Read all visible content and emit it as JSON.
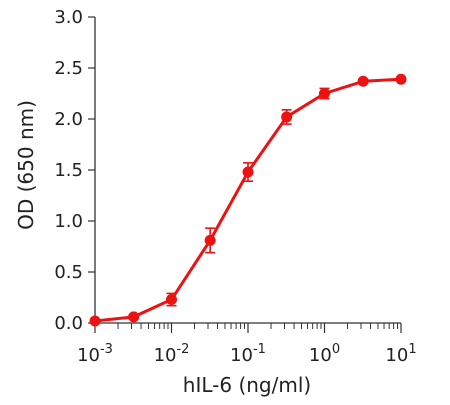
{
  "chart_data": {
    "type": "line",
    "xscale": "log",
    "xlabel": "hIL-6 (ng/ml)",
    "ylabel": "OD (650 nm)",
    "xlim": [
      0.001,
      10
    ],
    "ylim": [
      0,
      3.0
    ],
    "y_ticks": [
      0.0,
      0.5,
      1.0,
      1.5,
      2.0,
      2.5,
      3.0
    ],
    "y_tick_labels": [
      "0.0",
      "0.5",
      "1.0",
      "1.5",
      "2.0",
      "2.5",
      "3.0"
    ],
    "x_ticks": [
      {
        "value": 0.001,
        "base": "10",
        "exp": "-3"
      },
      {
        "value": 0.01,
        "base": "10",
        "exp": "-2"
      },
      {
        "value": 0.1,
        "base": "10",
        "exp": "-1"
      },
      {
        "value": 1,
        "base": "10",
        "exp": "0"
      },
      {
        "value": 10,
        "base": "10",
        "exp": "1"
      }
    ],
    "grid": false,
    "series": [
      {
        "color": "#ee1111",
        "points": [
          {
            "x": 0.001,
            "y": 0.02,
            "err": 0.0
          },
          {
            "x": 0.0032,
            "y": 0.06,
            "err": 0.02
          },
          {
            "x": 0.01,
            "y": 0.23,
            "err": 0.06
          },
          {
            "x": 0.032,
            "y": 0.81,
            "err": 0.12
          },
          {
            "x": 0.1,
            "y": 1.48,
            "err": 0.09
          },
          {
            "x": 0.32,
            "y": 2.02,
            "err": 0.07
          },
          {
            "x": 1,
            "y": 2.25,
            "err": 0.05
          },
          {
            "x": 3.2,
            "y": 2.37,
            "err": 0.02
          },
          {
            "x": 10,
            "y": 2.39,
            "err": 0.0
          }
        ]
      }
    ]
  }
}
